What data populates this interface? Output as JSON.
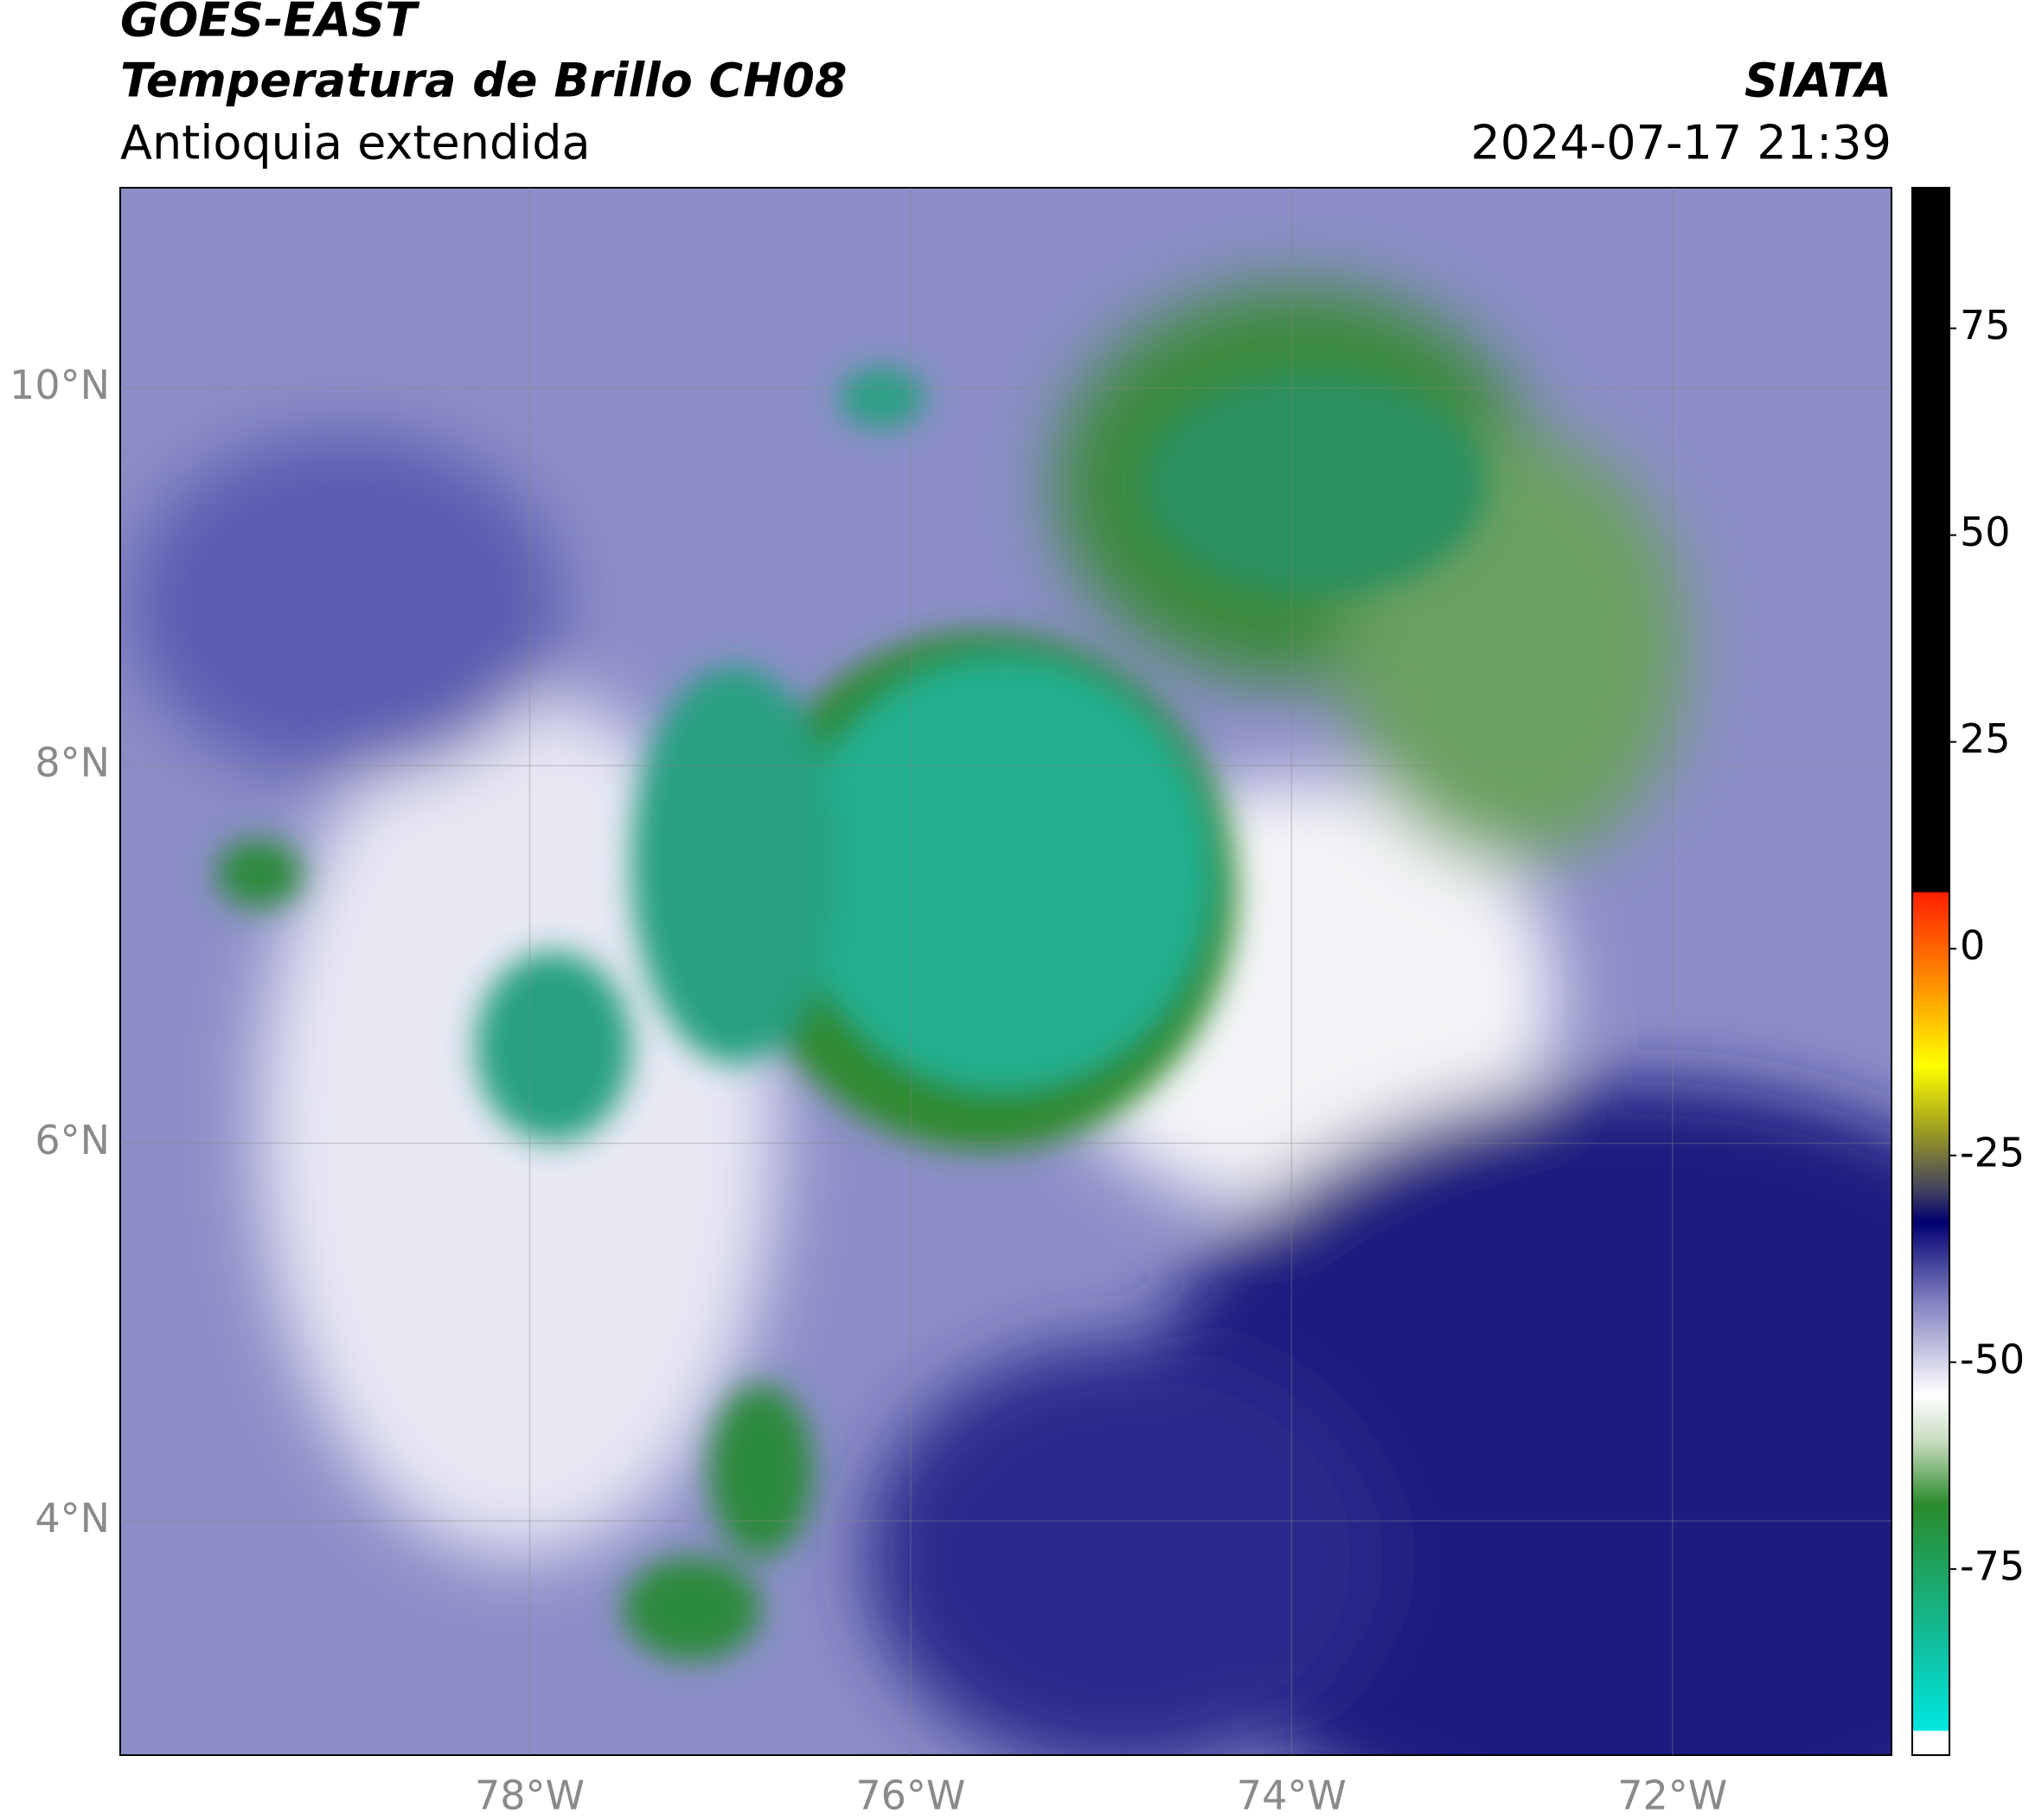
{
  "header": {
    "title": "GOES-EAST",
    "subtitle": "Temperatura de Brillo CH08",
    "region": "Antioquia extendida",
    "source": "SIATA",
    "datetime": "2024-07-17 21:39"
  },
  "map": {
    "xlim": [
      -80.15,
      -70.85
    ],
    "ylim": [
      2.76,
      11.06
    ],
    "xticks": [
      {
        "value": -78,
        "label": "78°W"
      },
      {
        "value": -76,
        "label": "76°W"
      },
      {
        "value": -74,
        "label": "74°W"
      },
      {
        "value": -72,
        "label": "72°W"
      }
    ],
    "yticks": [
      {
        "value": 10,
        "label": "10°N"
      },
      {
        "value": 8,
        "label": "8°N"
      },
      {
        "value": 6,
        "label": "6°N"
      },
      {
        "value": 4,
        "label": "4°N"
      }
    ],
    "grid": true
  },
  "colorbar": {
    "lim": [
      -97.5,
      92
    ],
    "ticks": [
      75,
      50,
      25,
      0,
      -25,
      -50,
      -75
    ]
  }
}
